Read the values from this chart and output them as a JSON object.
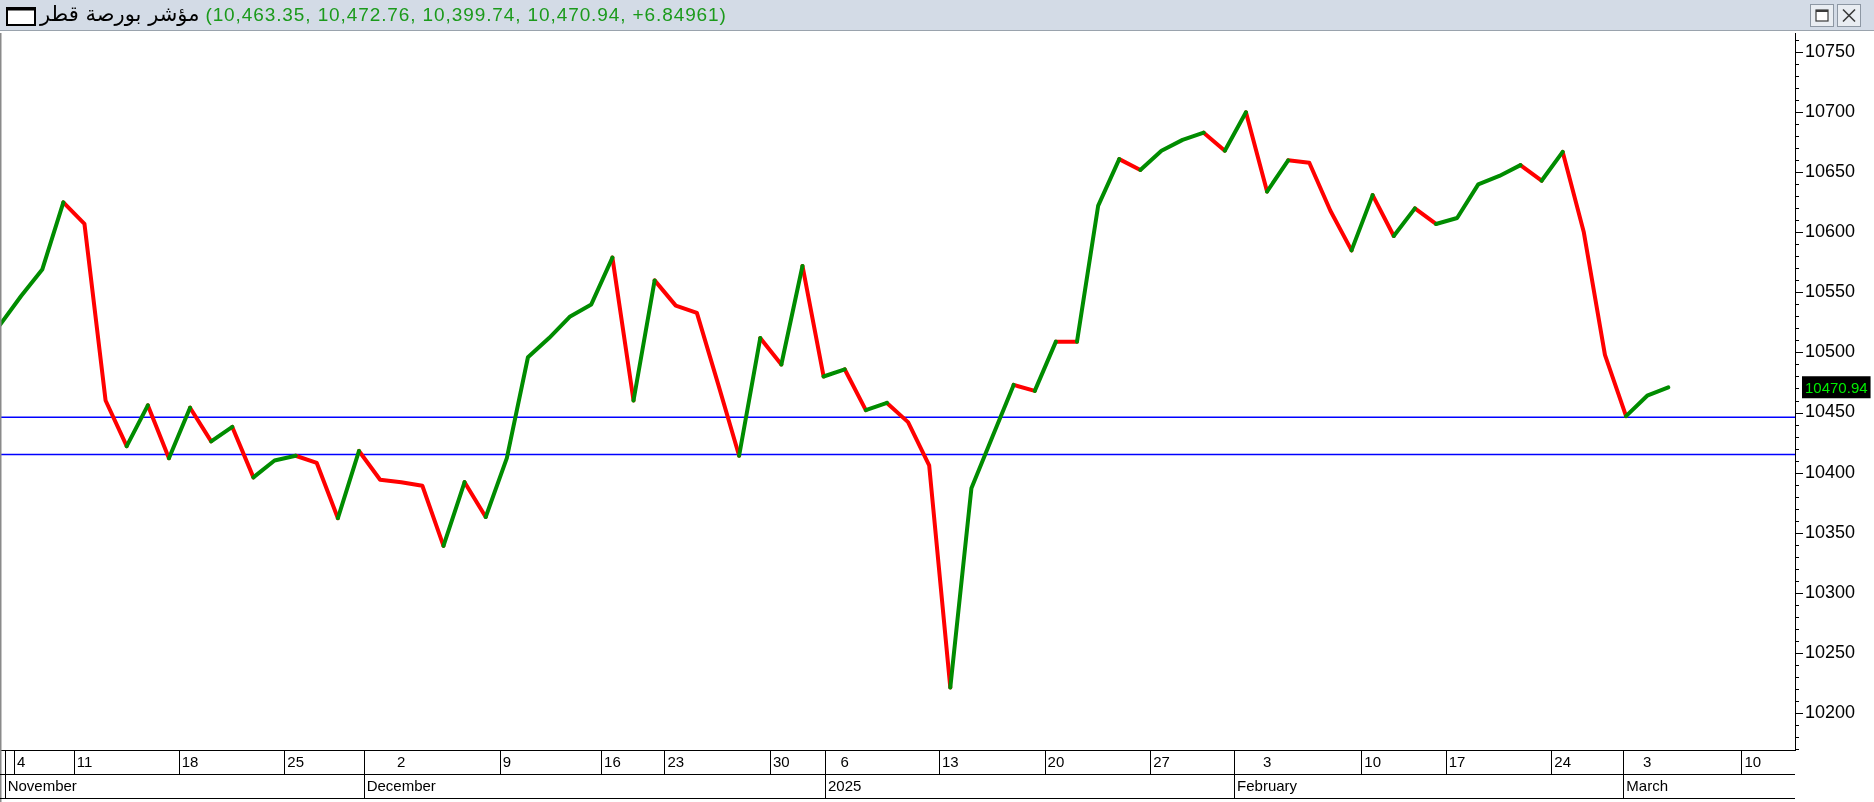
{
  "chart_data": {
    "type": "line",
    "title": "مؤشر بورصة قطر",
    "subtitle": "(10,463.35, 10,472.76, 10,399.74, 10,470.94, +6.84961)",
    "categories": [
      null,
      "4",
      "\nNovember",
      null,
      "11",
      null,
      null,
      null,
      null,
      "18",
      null,
      null,
      null,
      null,
      "25",
      null,
      null,
      null,
      null,
      "2\nDecember",
      null,
      null,
      null,
      null,
      "9",
      null,
      null,
      null,
      null,
      "16",
      null,
      null,
      "23",
      null,
      null,
      null,
      null,
      "30",
      null,
      null,
      "6\n2025",
      null,
      null,
      null,
      null,
      "13",
      null,
      null,
      null,
      null,
      "20",
      null,
      null,
      null,
      null,
      "27",
      null,
      null,
      null,
      null,
      "3\nFebruary",
      null,
      null,
      null,
      null,
      "10",
      null,
      null,
      null,
      "17",
      null,
      null,
      null,
      null,
      "24",
      null,
      null,
      null,
      "3\nMarch",
      null,
      null,
      null,
      null,
      "10",
      null,
      null
    ],
    "series": [
      {
        "color": "#008c00",
        "values": [
          10523,
          10547,
          10569,
          10625,
          null,
          null,
          null,
          null,
          10412,
          10454,
          null,
          null,
          10396,
          10410,
          10414,
          null,
          null,
          null,
          null,
          null,
          null,
          10339,
          10392,
          null,
          null,
          null,
          null,
          null,
          null,
          null,
          10460,
          10560,
          null,
          null,
          null,
          null,
          null,
          10490,
          10572,
          null,
          null,
          10452,
          10458,
          null,
          null,
          null,
          null,
          null,
          null,
          10468,
          10509,
          null,
          null,
          null,
          10652,
          10668,
          10677,
          10683,
          null,
          null,
          10634,
          10660,
          null,
          null,
          null,
          null,
          10597,
          10620,
          null,
          null,
          null,
          null,
          null,
          10643,
          10667,
          null,
          null,
          null,
          null,
          null,
          null,
          null,
          null,
          null,
          null,
          null
        ]
      },
      {
        "color": "#008c00",
        "values": [
          null,
          null,
          null,
          null,
          null,
          null,
          10422,
          10456,
          null,
          null,
          10426,
          10438,
          null,
          null,
          null,
          null,
          10362,
          10418,
          null,
          null,
          null,
          null,
          null,
          10363,
          10412,
          10496,
          10512,
          10530,
          10540,
          10579,
          null,
          null,
          null,
          null,
          null,
          10414,
          10512,
          null,
          null,
          10480,
          10486,
          null,
          null,
          null,
          null,
          10221,
          10387,
          10430,
          10473,
          null,
          null,
          10509,
          10622,
          10661,
          null,
          null,
          null,
          null,
          10668,
          10700,
          null,
          null,
          null,
          null,
          10585,
          10631,
          null,
          null,
          10607,
          10612,
          10640,
          10647,
          10656,
          null,
          null,
          null,
          null,
          10447,
          10464,
          10470.94,
          null,
          null,
          null,
          null,
          null,
          null
        ]
      },
      {
        "color": "#ff0000",
        "values": [
          null,
          null,
          null,
          10625,
          10607,
          10460,
          10422,
          null,
          null,
          10454,
          10426,
          null,
          null,
          null,
          10414,
          10408,
          10362,
          null,
          null,
          null,
          null,
          null,
          10392,
          10363,
          null,
          null,
          null,
          null,
          null,
          null,
          null,
          10560,
          10539,
          10533,
          10474,
          10414,
          null,
          null,
          10572,
          10480,
          null,
          null,
          10458,
          10442,
          10406,
          10221,
          null,
          null,
          null,
          null,
          10509,
          10509,
          null,
          null,
          null,
          null,
          null,
          10683,
          10668,
          null,
          null,
          10660,
          10658,
          10618,
          10585,
          null,
          null,
          10620,
          10607,
          null,
          null,
          null,
          null,
          null,
          10667,
          10600,
          10498,
          10447,
          null,
          null,
          null,
          null,
          null,
          null,
          null,
          null
        ]
      },
      {
        "color": "#ff0000",
        "values": [
          null,
          null,
          null,
          null,
          null,
          null,
          null,
          10456,
          10412,
          null,
          null,
          10438,
          10396,
          null,
          null,
          null,
          null,
          10418,
          10394,
          10392,
          10389,
          10339,
          null,
          null,
          null,
          null,
          null,
          null,
          null,
          10579,
          10460,
          null,
          null,
          null,
          null,
          null,
          10512,
          10490,
          null,
          null,
          10486,
          10452,
          null,
          null,
          null,
          null,
          null,
          null,
          10473,
          10468,
          null,
          null,
          null,
          10661,
          10652,
          null,
          null,
          null,
          null,
          10700,
          10634,
          null,
          null,
          null,
          null,
          10631,
          10597,
          null,
          null,
          null,
          null,
          null,
          10656,
          10643,
          null,
          null,
          null,
          null,
          null,
          null,
          null,
          null,
          null,
          null,
          null,
          null
        ]
      }
    ],
    "ylim": [
      10169,
      10766
    ],
    "yticks": [
      {
        "value": 10170,
        "label": null
      },
      {
        "value": 10180,
        "label": null
      },
      {
        "value": 10190,
        "label": null
      },
      10200,
      {
        "value": 10210,
        "label": null
      },
      {
        "value": 10220,
        "label": null
      },
      {
        "value": 10230,
        "label": null
      },
      {
        "value": 10240,
        "label": null
      },
      10250,
      {
        "value": 10260,
        "label": null
      },
      {
        "value": 10270,
        "label": null
      },
      {
        "value": 10280,
        "label": null
      },
      {
        "value": 10290,
        "label": null
      },
      10300,
      {
        "value": 10310,
        "label": null
      },
      {
        "value": 10320,
        "label": null
      },
      {
        "value": 10330,
        "label": null
      },
      {
        "value": 10340,
        "label": null
      },
      10350,
      {
        "value": 10360,
        "label": null
      },
      {
        "value": 10370,
        "label": null
      },
      {
        "value": 10380,
        "label": null
      },
      {
        "value": 10390,
        "label": null
      },
      10400,
      {
        "value": 10410,
        "label": null
      },
      {
        "value": 10420,
        "label": null
      },
      {
        "value": 10430,
        "label": null
      },
      {
        "value": 10440,
        "label": null
      },
      10450,
      {
        "value": 10460,
        "label": null
      },
      {
        "value": 10470,
        "label": null
      },
      {
        "value": 10480,
        "label": null
      },
      {
        "value": 10490,
        "label": null
      },
      10500,
      {
        "value": 10510,
        "label": null
      },
      {
        "value": 10520,
        "label": null
      },
      {
        "value": 10530,
        "label": null
      },
      {
        "value": 10540,
        "label": null
      },
      10550,
      {
        "value": 10560,
        "label": null
      },
      {
        "value": 10570,
        "label": null
      },
      {
        "value": 10580,
        "label": null
      },
      {
        "value": 10590,
        "label": null
      },
      10600,
      {
        "value": 10610,
        "label": null
      },
      {
        "value": 10620,
        "label": null
      },
      {
        "value": 10630,
        "label": null
      },
      {
        "value": 10640,
        "label": null
      },
      10650,
      {
        "value": 10660,
        "label": null
      },
      {
        "value": 10670,
        "label": null
      },
      {
        "value": 10680,
        "label": null
      },
      {
        "value": 10690,
        "label": null
      },
      10700,
      {
        "value": 10710,
        "label": null
      },
      {
        "value": 10720,
        "label": null
      },
      {
        "value": 10730,
        "label": null
      },
      {
        "value": 10740,
        "label": null
      },
      10750,
      {
        "value": 10760,
        "label": null
      }
    ],
    "ref_lines": [
      {
        "axis": "y",
        "value": 10446,
        "color": "#0000ff"
      },
      {
        "axis": "y",
        "value": 10415,
        "color": "#0000ff"
      }
    ],
    "annotations": [
      "10470.94"
    ]
  }
}
